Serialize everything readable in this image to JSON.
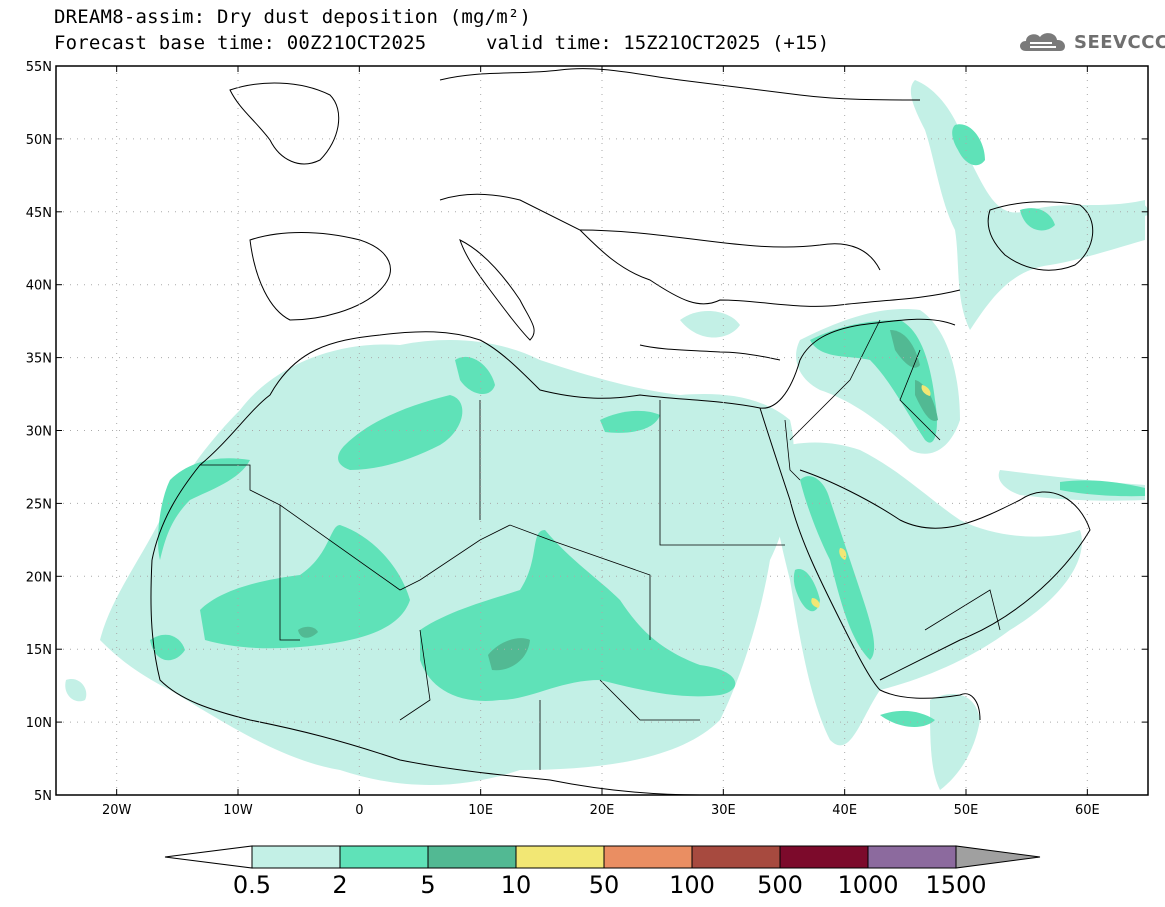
{
  "header": {
    "title": "DREAM8-assim: Dry dust deposition (mg/m²)",
    "base_time": "Forecast base time: 00Z21OCT2025",
    "valid_time": "valid time: 15Z21OCT2025 (+15)"
  },
  "logo": {
    "text": "SEEVCCC",
    "icon": "cloud-logo-icon",
    "color": "#6f6f6f"
  },
  "map": {
    "lon_range": [
      -25,
      65
    ],
    "lat_range": [
      5,
      55
    ],
    "lat_ticks": [
      {
        "value": 55,
        "label": "55N"
      },
      {
        "value": 50,
        "label": "50N"
      },
      {
        "value": 45,
        "label": "45N"
      },
      {
        "value": 40,
        "label": "40N"
      },
      {
        "value": 35,
        "label": "35N"
      },
      {
        "value": 30,
        "label": "30N"
      },
      {
        "value": 25,
        "label": "25N"
      },
      {
        "value": 20,
        "label": "20N"
      },
      {
        "value": 15,
        "label": "15N"
      },
      {
        "value": 10,
        "label": "10N"
      },
      {
        "value": 5,
        "label": "5N"
      }
    ],
    "lon_ticks": [
      {
        "value": -20,
        "label": "20W"
      },
      {
        "value": -10,
        "label": "10W"
      },
      {
        "value": 0,
        "label": "0"
      },
      {
        "value": 10,
        "label": "10E"
      },
      {
        "value": 20,
        "label": "20E"
      },
      {
        "value": 30,
        "label": "30E"
      },
      {
        "value": 40,
        "label": "40E"
      },
      {
        "value": 50,
        "label": "50E"
      },
      {
        "value": 60,
        "label": "60E"
      }
    ],
    "grid": "dotted",
    "land_outline_color": "#000000"
  },
  "colorbar": {
    "labels": [
      "0.5",
      "2",
      "5",
      "10",
      "50",
      "100",
      "500",
      "1000",
      "1500"
    ],
    "colors": [
      "#c3f0e6",
      "#5fe2b8",
      "#52b993",
      "#f2e774",
      "#ea8e62",
      "#a74a3f",
      "#7c0a2b",
      "#8c6a9e"
    ],
    "under_color": "#ffffff",
    "over_color": "#a0a0a0"
  },
  "fields": {
    "level1_color": "#c3f0e6",
    "level2_color": "#5fe2b8",
    "level3_color": "#52b993",
    "level4_color": "#f2e774"
  }
}
